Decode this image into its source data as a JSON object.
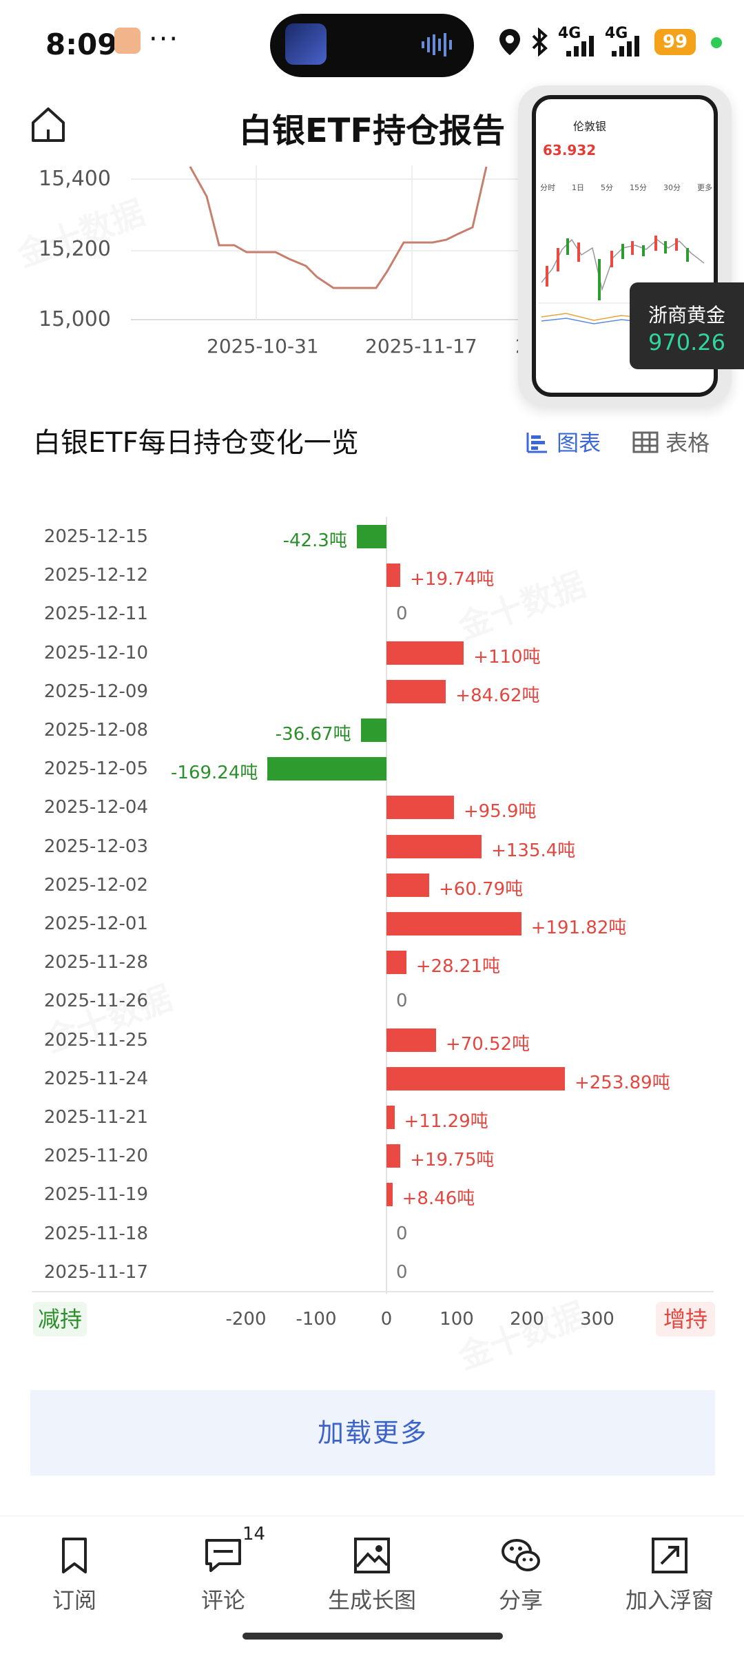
{
  "status_bar": {
    "time": "8:09",
    "dots": "···",
    "net1": "4G",
    "net2": "4G",
    "battery": "99"
  },
  "header": {
    "title": "白银ETF持仓报告"
  },
  "top_chart": {
    "type": "line",
    "yticks": [
      "15,400",
      "15,200",
      "15,000"
    ],
    "xticks": [
      "2025-10-31",
      "2025-11-17",
      "2"
    ],
    "color": "#c77e6c"
  },
  "floating_widget": {
    "mini_title": "伦敦银",
    "mini_price": "63.932",
    "tabs": [
      "分时",
      "1日",
      "5分",
      "15分",
      "30分",
      "更多"
    ],
    "gold_name": "浙商黄金",
    "gold_value": "970.26"
  },
  "section": {
    "title": "白银ETF每日持仓变化一览",
    "seg_chart": "图表",
    "seg_table": "表格"
  },
  "chart_data": {
    "type": "bar",
    "orientation": "horizontal",
    "categories": [
      "2025-12-15",
      "2025-12-12",
      "2025-12-11",
      "2025-12-10",
      "2025-12-09",
      "2025-12-08",
      "2025-12-05",
      "2025-12-04",
      "2025-12-03",
      "2025-12-02",
      "2025-12-01",
      "2025-11-28",
      "2025-11-26",
      "2025-11-25",
      "2025-11-24",
      "2025-11-21",
      "2025-11-20",
      "2025-11-19",
      "2025-11-18",
      "2025-11-17"
    ],
    "values": [
      -42.3,
      19.74,
      0,
      110,
      84.62,
      -36.67,
      -169.24,
      95.9,
      135.4,
      60.79,
      191.82,
      28.21,
      0,
      70.52,
      253.89,
      11.29,
      19.75,
      8.46,
      0,
      0
    ],
    "labels": [
      "-42.3吨",
      "+19.74吨",
      "0",
      "+110吨",
      "+84.62吨",
      "-36.67吨",
      "-169.24吨",
      "+95.9吨",
      "+135.4吨",
      "+60.79吨",
      "+191.82吨",
      "+28.21吨",
      "0",
      "+70.52吨",
      "+253.89吨",
      "+11.29吨",
      "+19.75吨",
      "+8.46吨",
      "0",
      "0"
    ],
    "xticks": [
      "-200",
      "-100",
      "0",
      "100",
      "200",
      "300"
    ],
    "xlim": [
      -200,
      300
    ],
    "colors": {
      "positive": "#ea4a42",
      "negative": "#2d9b2d"
    },
    "legend_left": "减持",
    "legend_right": "增持"
  },
  "load_more": "加载更多",
  "bottom_nav": {
    "items": [
      {
        "label": "订阅",
        "icon": "bookmark-icon"
      },
      {
        "label": "评论",
        "icon": "comment-icon"
      },
      {
        "label": "生成长图",
        "icon": "image-icon"
      },
      {
        "label": "分享",
        "icon": "wechat-icon"
      },
      {
        "label": "加入浮窗",
        "icon": "float-window-icon"
      }
    ],
    "comment_count": "14"
  }
}
